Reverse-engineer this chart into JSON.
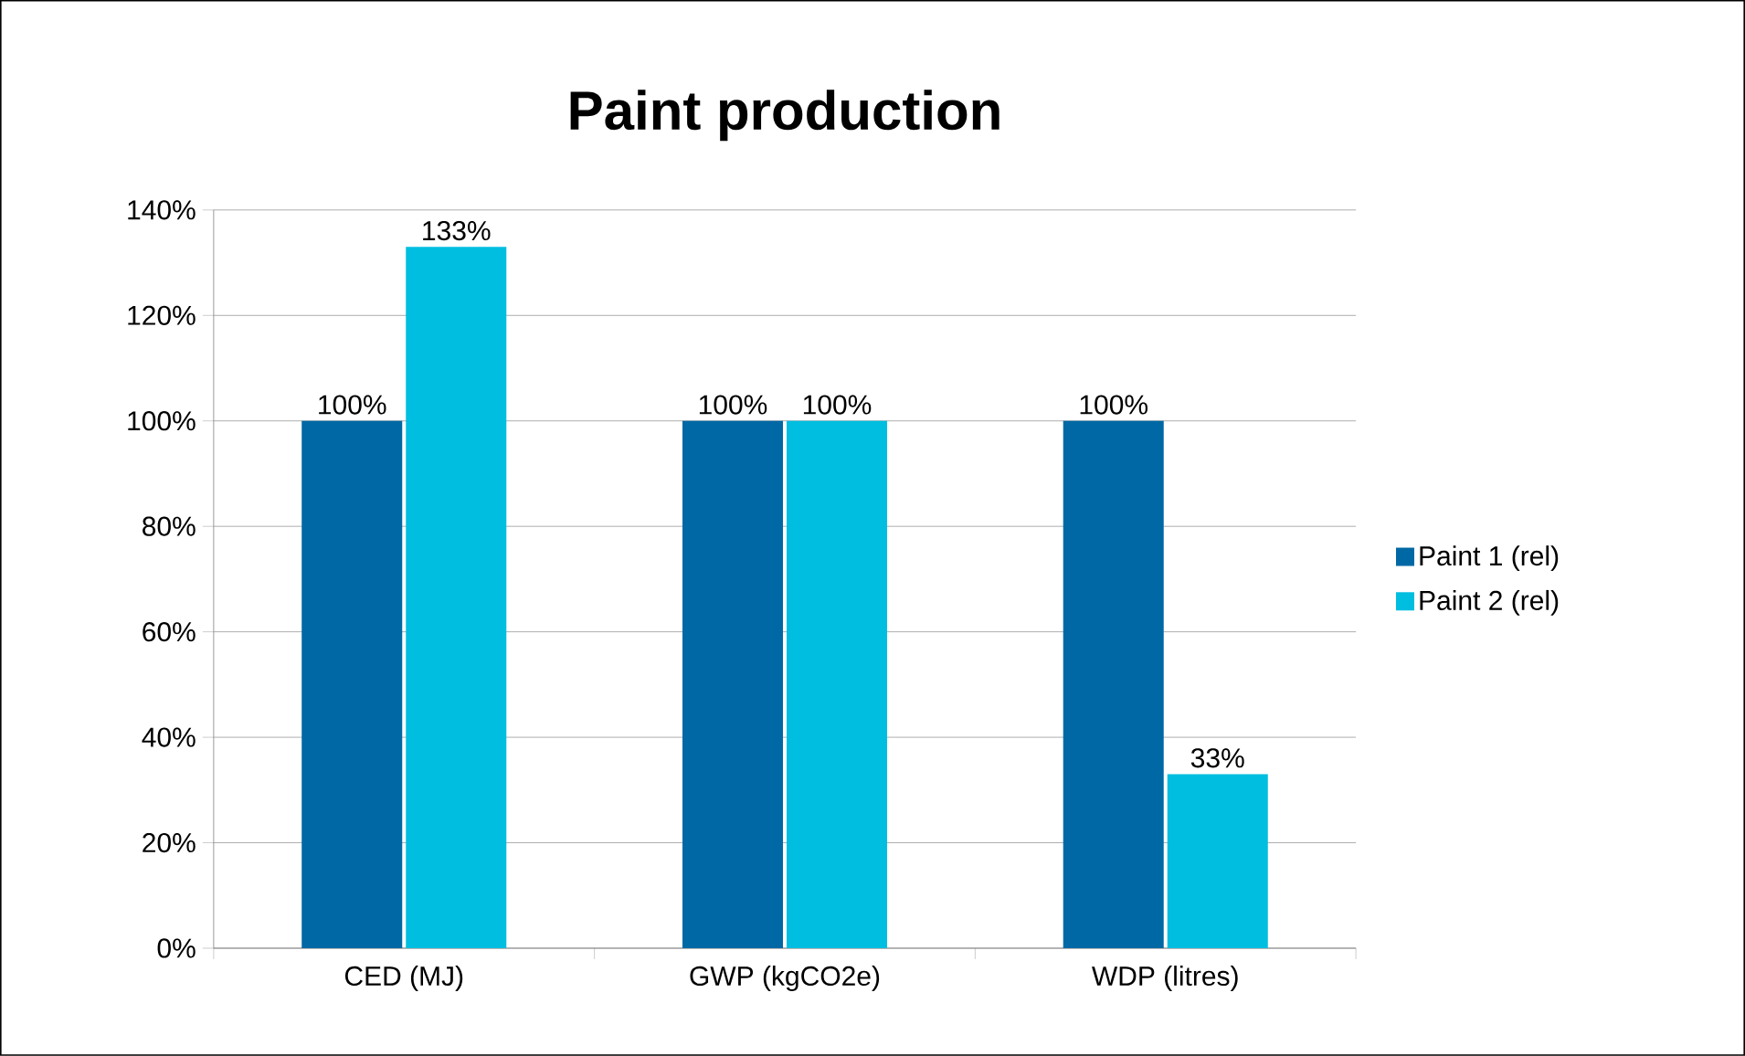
{
  "chart_data": {
    "type": "bar",
    "title": "Paint production",
    "categories": [
      "CED (MJ)",
      "GWP  (kgCO2e)",
      "WDP (litres)"
    ],
    "series": [
      {
        "name": "Paint 1 (rel)",
        "color": "#0069a5",
        "values": [
          100,
          100,
          100
        ],
        "value_labels": [
          "100%",
          "100%",
          "100%"
        ]
      },
      {
        "name": "Paint 2 (rel)",
        "color": "#00bee0",
        "values": [
          133,
          100,
          33
        ],
        "value_labels": [
          "133%",
          "100%",
          "33%"
        ]
      }
    ],
    "ylim": [
      0,
      140
    ],
    "yticks": [
      {
        "value": 0,
        "label": "0%"
      },
      {
        "value": 20,
        "label": "20%"
      },
      {
        "value": 40,
        "label": "40%"
      },
      {
        "value": 60,
        "label": "60%"
      },
      {
        "value": 80,
        "label": "80%"
      },
      {
        "value": 100,
        "label": "100%"
      },
      {
        "value": 120,
        "label": "120%"
      },
      {
        "value": 140,
        "label": "140%"
      }
    ],
    "grid": "y",
    "legend": "right"
  }
}
